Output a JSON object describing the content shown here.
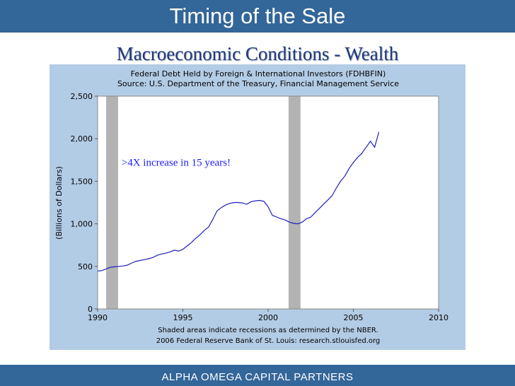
{
  "slide": {
    "title": "Timing of the Sale",
    "subtitle": "Macroeconomic Conditions - Wealth",
    "footer": "ALPHA  OMEGA  CAPITAL  PARTNERS"
  },
  "colors": {
    "banner": "#336699",
    "panel": "#b3cce5",
    "plot_bg": "#ffffff",
    "line": "#1f1fbf",
    "recession": "#b3b3b3",
    "annotation": "#1a1aff"
  },
  "chart_data": {
    "type": "line",
    "title": "Federal Debt Held by Foreign & International Investors (FDHBFIN)",
    "subtitle": "Source: U.S. Department of the Treasury, Financial Management Service",
    "ylabel": "(Billions of Dollars)",
    "xlabel": "",
    "xlim": [
      1990,
      2010
    ],
    "ylim": [
      0,
      2500
    ],
    "xticks": [
      {
        "value": 1990,
        "label": "1990"
      },
      {
        "value": 1995,
        "label": "1995"
      },
      {
        "value": 2000,
        "label": "2000"
      },
      {
        "value": 2005,
        "label": "2005"
      },
      {
        "value": 2010,
        "label": "2010"
      }
    ],
    "yticks": [
      {
        "value": 0,
        "label": "0"
      },
      {
        "value": 500,
        "label": "500"
      },
      {
        "value": 1000,
        "label": "1,000"
      },
      {
        "value": 1500,
        "label": "1,500"
      },
      {
        "value": 2000,
        "label": "2,000"
      },
      {
        "value": 2500,
        "label": "2,500"
      }
    ],
    "recessions": [
      {
        "start": 1990.5,
        "end": 1991.2
      },
      {
        "start": 2001.2,
        "end": 2001.9
      }
    ],
    "annotation": {
      "text": ">4X increase in 15 years!",
      "x": 1991.4,
      "y": 1680
    },
    "footnotes": [
      "Shaded areas indicate recessions as determined by the NBER.",
      "2006 Federal Reserve Bank of St. Louis: research.stlouisfed.org"
    ],
    "series": [
      {
        "name": "FDHBFIN",
        "x": [
          1990.0,
          1990.25,
          1990.5,
          1990.75,
          1991.0,
          1991.25,
          1991.5,
          1991.75,
          1992.0,
          1992.25,
          1992.5,
          1992.75,
          1993.0,
          1993.25,
          1993.5,
          1993.75,
          1994.0,
          1994.25,
          1994.5,
          1994.75,
          1995.0,
          1995.25,
          1995.5,
          1995.75,
          1996.0,
          1996.25,
          1996.5,
          1996.75,
          1997.0,
          1997.25,
          1997.5,
          1997.75,
          1998.0,
          1998.25,
          1998.5,
          1998.75,
          1999.0,
          1999.25,
          1999.5,
          1999.75,
          2000.0,
          2000.25,
          2000.5,
          2000.75,
          2001.0,
          2001.25,
          2001.5,
          2001.75,
          2002.0,
          2002.25,
          2002.5,
          2002.75,
          2003.0,
          2003.25,
          2003.5,
          2003.75,
          2004.0,
          2004.25,
          2004.5,
          2004.75,
          2005.0,
          2005.25,
          2005.5,
          2005.75,
          2006.0,
          2006.25,
          2006.5
        ],
        "values": [
          445,
          450,
          470,
          490,
          495,
          500,
          505,
          515,
          540,
          560,
          570,
          580,
          590,
          605,
          630,
          645,
          655,
          670,
          690,
          680,
          700,
          740,
          780,
          830,
          870,
          920,
          960,
          1050,
          1150,
          1190,
          1220,
          1240,
          1250,
          1250,
          1245,
          1230,
          1260,
          1270,
          1275,
          1265,
          1200,
          1100,
          1080,
          1060,
          1045,
          1020,
          1005,
          1000,
          1020,
          1060,
          1080,
          1130,
          1180,
          1230,
          1280,
          1330,
          1420,
          1500,
          1560,
          1650,
          1720,
          1780,
          1830,
          1900,
          1970,
          1900,
          2080
        ]
      }
    ]
  }
}
